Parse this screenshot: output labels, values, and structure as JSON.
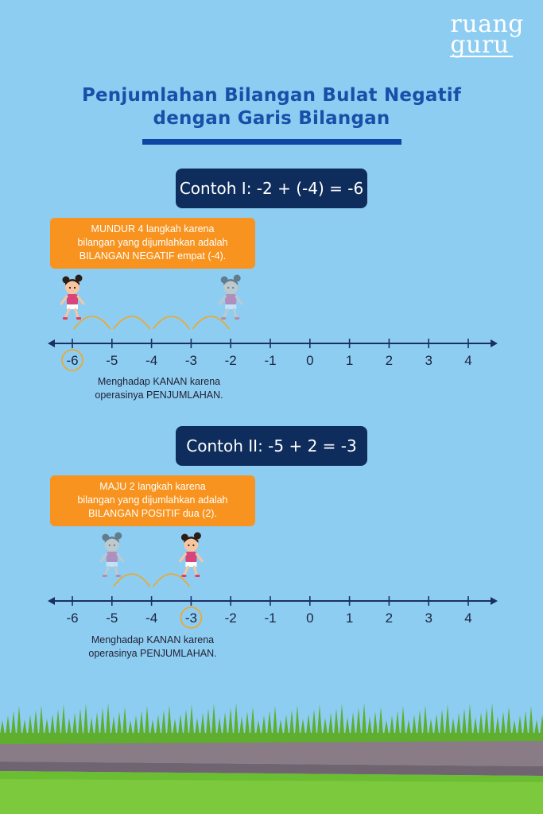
{
  "logo": {
    "line1": "ruang",
    "line2": "guru"
  },
  "title": {
    "line1": "Penjumlahan Bilangan Bulat Negatif",
    "line2": "dengan Garis Bilangan"
  },
  "example1": {
    "heading": "Contoh I: -2 + (-4) = -6",
    "note": [
      "MUNDUR 4 langkah karena",
      "bilangan yang dijumlahkan adalah",
      "BILANGAN NEGATIF empat (-4)."
    ],
    "caption": [
      "Menghadap KANAN karena",
      "operasinya PENJUMLAHAN."
    ],
    "start": -2,
    "end": -6
  },
  "example2": {
    "heading": "Contoh II: -5 + 2 = -3",
    "note": [
      "MAJU 2 langkah karena",
      "bilangan yang dijumlahkan adalah",
      "BILANGAN POSITIF dua (2)."
    ],
    "caption": [
      "Menghadap KANAN karena",
      "operasinya PENJUMLAHAN."
    ],
    "start": -5,
    "end": -3
  },
  "number_line": {
    "ticks": [
      "-6",
      "-5",
      "-4",
      "-3",
      "-2",
      "-1",
      "0",
      "1",
      "2",
      "3",
      "4"
    ]
  },
  "colors": {
    "background": "#8ecdf2",
    "title": "#1650a8",
    "box": "#0f2d5c",
    "note": "#f7931e",
    "arc": "#f4a51c"
  }
}
